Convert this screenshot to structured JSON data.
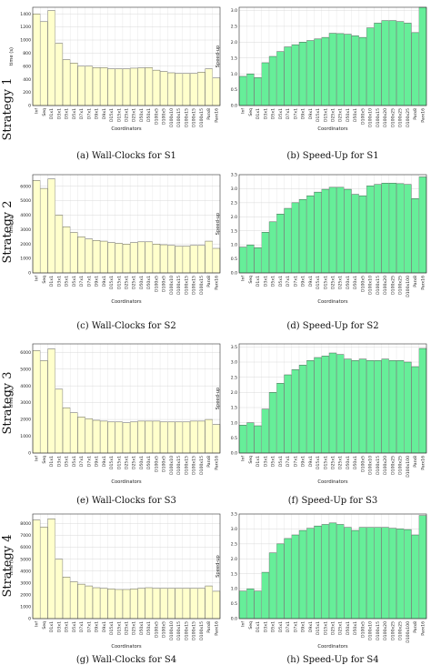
{
  "row_labels": [
    "Strategy 1",
    "Strategy 2",
    "Strategy 3",
    "Strategy 4"
  ],
  "colors": {
    "wall_fill": "#ffffcc",
    "speed_fill": "#66ee99",
    "edge": "#333333",
    "grid": "#d9d9d9"
  },
  "chart_data": [
    {
      "type": "bar",
      "caption": "(a) Wall-Clocks for S1",
      "xlabel": "Coordinators",
      "ylabel": "time (s)",
      "ylim": [
        0,
        1500
      ],
      "yticks": [
        0,
        200,
        400,
        600,
        800,
        1000,
        1200,
        1400
      ],
      "categories": [
        "Inf",
        "Seq",
        "D1x1",
        "D3x1",
        "D5x1",
        "D5x1",
        "D7x1",
        "D7x1",
        "D9x1",
        "D9x1",
        "D15x1",
        "D15x1",
        "D25x1",
        "D25x1",
        "D50x1",
        "D50x1",
        "D100x5",
        "D100x5",
        "D100x10",
        "D100x15",
        "D100x15",
        "D100x15",
        "D100x15",
        "Parx8",
        "Parx16"
      ],
      "values": [
        1400,
        1280,
        1450,
        950,
        700,
        650,
        600,
        600,
        580,
        580,
        560,
        560,
        560,
        570,
        575,
        580,
        540,
        520,
        500,
        490,
        490,
        490,
        510,
        560,
        420
      ]
    },
    {
      "type": "bar",
      "caption": "(b) Speed-Up for S1",
      "xlabel": "Coordinators",
      "ylabel": "Speed-up",
      "ylim": [
        0,
        3.1
      ],
      "yticks": [
        0.0,
        0.5,
        1.0,
        1.5,
        2.0,
        2.5,
        3.0
      ],
      "categories": [
        "Inf",
        "Seq",
        "D1x1",
        "D3x1",
        "D5x1",
        "D5x1",
        "D7x1",
        "D7x1",
        "D9x1",
        "D9x1",
        "D15x1",
        "D15x1",
        "D25x1",
        "D25x1",
        "D50x1",
        "D50x1",
        "D100x5",
        "D100x10",
        "D100x15",
        "D100x20",
        "D100x25",
        "D100x25",
        "D100x25",
        "Parx8",
        "Parx16"
      ],
      "values": [
        0.92,
        1.0,
        0.88,
        1.35,
        1.55,
        1.7,
        1.85,
        1.92,
        2.0,
        2.05,
        2.1,
        2.15,
        2.28,
        2.27,
        2.25,
        2.2,
        2.15,
        2.45,
        2.6,
        2.68,
        2.68,
        2.65,
        2.6,
        2.3,
        3.1
      ]
    },
    {
      "type": "bar",
      "caption": "(c) Wall-Clocks for S2",
      "xlabel": "Coordinators",
      "ylabel": "time (s)",
      "ylim": [
        0,
        6800
      ],
      "yticks": [
        0,
        1000,
        2000,
        3000,
        4000,
        5000,
        6000
      ],
      "categories": [
        "Inf",
        "Seq",
        "D1x1",
        "D3x1",
        "D5x1",
        "D5x1",
        "D7x1",
        "D7x1",
        "D9x1",
        "D9x1",
        "D15x1",
        "D15x1",
        "D25x1",
        "D25x1",
        "D50x1",
        "D50x1",
        "D100x5",
        "D100x5",
        "D100x10",
        "D100x15",
        "D100x15",
        "D100x15",
        "D100x15",
        "Parx8",
        "Parx16"
      ],
      "values": [
        6400,
        5850,
        6500,
        4000,
        3200,
        2800,
        2500,
        2350,
        2250,
        2200,
        2100,
        2050,
        2000,
        2100,
        2150,
        2150,
        2000,
        1950,
        1900,
        1850,
        1850,
        1900,
        1900,
        2200,
        1700
      ]
    },
    {
      "type": "bar",
      "caption": "(d) Speed-Up for S2",
      "xlabel": "Coordinators",
      "ylabel": "Speed-up",
      "ylim": [
        0,
        3.5
      ],
      "yticks": [
        0.0,
        0.5,
        1.0,
        1.5,
        2.0,
        2.5,
        3.0,
        3.5
      ],
      "categories": [
        "Inf",
        "Seq",
        "D1x1",
        "D3x1",
        "D5x1",
        "D5x1",
        "D7x1",
        "D7x1",
        "D9x1",
        "D9x1",
        "D15x1",
        "D15x1",
        "D25x1",
        "D25x1",
        "D50x1",
        "D50x1",
        "D100x5",
        "D100x10",
        "D100x15",
        "D100x20",
        "D100x25",
        "D100x25",
        "D100x100",
        "Parx8",
        "Parx16"
      ],
      "values": [
        0.92,
        1.0,
        0.9,
        1.45,
        1.82,
        2.1,
        2.3,
        2.5,
        2.62,
        2.75,
        2.88,
        2.98,
        3.05,
        3.05,
        2.98,
        2.8,
        2.75,
        3.1,
        3.15,
        3.2,
        3.2,
        3.18,
        3.15,
        2.65,
        3.42
      ]
    },
    {
      "type": "bar",
      "caption": "(e) Wall-Clocks for S3",
      "xlabel": "Coordinators",
      "ylabel": "time (s)",
      "ylim": [
        0,
        6500
      ],
      "yticks": [
        0,
        1000,
        2000,
        3000,
        4000,
        5000,
        6000
      ],
      "categories": [
        "Inf",
        "Seq",
        "D1x1",
        "D3x1",
        "D5x1",
        "D5x1",
        "D7x1",
        "D7x1",
        "D9x1",
        "D9x1",
        "D15x1",
        "D15x1",
        "D25x1",
        "D25x1",
        "D50x1",
        "D50x1",
        "D100x5",
        "D100x5",
        "D100x10",
        "D100x15",
        "D100x15",
        "D100x15",
        "D100x15",
        "Parx8",
        "Parx16"
      ],
      "values": [
        6100,
        5500,
        6200,
        3800,
        2700,
        2400,
        2150,
        2050,
        1950,
        1900,
        1850,
        1850,
        1800,
        1850,
        1900,
        1900,
        1900,
        1850,
        1850,
        1850,
        1850,
        1900,
        1900,
        2000,
        1700
      ]
    },
    {
      "type": "bar",
      "caption": "(f) Speed-Up for S3",
      "xlabel": "Coordinators",
      "ylabel": "Speed-up",
      "ylim": [
        0,
        3.6
      ],
      "yticks": [
        0.0,
        0.5,
        1.0,
        1.5,
        2.0,
        2.5,
        3.0,
        3.5
      ],
      "categories": [
        "Inf",
        "Seq",
        "D1x1",
        "D3x1",
        "D5x1",
        "D5x1",
        "D7x1",
        "D7x1",
        "D9x1",
        "D9x1",
        "D15x1",
        "D15x1",
        "D25x1",
        "D25x1",
        "D50x1",
        "D50x1",
        "D100x5",
        "D100x10",
        "D100x15",
        "D100x20",
        "D100x25",
        "D100x25",
        "D100x100",
        "Parx8",
        "Parx16"
      ],
      "values": [
        0.92,
        1.0,
        0.9,
        1.45,
        2.0,
        2.3,
        2.58,
        2.75,
        2.9,
        3.05,
        3.15,
        3.2,
        3.3,
        3.25,
        3.1,
        3.05,
        3.1,
        3.05,
        3.05,
        3.1,
        3.05,
        3.05,
        3.0,
        2.85,
        3.45
      ]
    },
    {
      "type": "bar",
      "caption": "(g) Wall-Clocks for S4",
      "xlabel": "Coordinators",
      "ylabel": "time (s)",
      "ylim": [
        0,
        8800
      ],
      "yticks": [
        0,
        1000,
        2000,
        3000,
        4000,
        5000,
        6000,
        7000,
        8000
      ],
      "categories": [
        "Inf",
        "Seq",
        "D1x1",
        "D3x1",
        "D5x1",
        "D5x1",
        "D7x1",
        "D7x1",
        "D9x1",
        "D9x1",
        "D15x1",
        "D15x1",
        "D25x1",
        "D25x1",
        "D50x1",
        "D50x1",
        "D100x5",
        "D100x5",
        "D100x10",
        "D100x15",
        "D100x15",
        "D100x15",
        "D100x15",
        "Parx8",
        "Parx16"
      ],
      "values": [
        8300,
        7700,
        8400,
        5000,
        3500,
        3100,
        2900,
        2750,
        2600,
        2550,
        2500,
        2450,
        2450,
        2500,
        2550,
        2600,
        2550,
        2550,
        2550,
        2550,
        2550,
        2550,
        2550,
        2750,
        2300
      ]
    },
    {
      "type": "bar",
      "caption": "(h) Speed-Up for S4",
      "xlabel": "Coordinators",
      "ylabel": "Speed-up",
      "ylim": [
        0,
        3.5
      ],
      "yticks": [
        0.0,
        0.5,
        1.0,
        1.5,
        2.0,
        2.5,
        3.0,
        3.5
      ],
      "categories": [
        "Inf",
        "Seq",
        "D1x1",
        "D3x1",
        "D5x1",
        "D5x1",
        "D7x1",
        "D7x1",
        "D9x1",
        "D9x1",
        "D15x1",
        "D15x1",
        "D25x1",
        "D25x1",
        "D50x1",
        "D50x1",
        "D100x5",
        "D100x10",
        "D100x15",
        "D100x20",
        "D100x25",
        "D100x25",
        "D100x100",
        "Parx8",
        "Parx16"
      ],
      "values": [
        0.92,
        1.0,
        0.92,
        1.55,
        2.2,
        2.5,
        2.68,
        2.8,
        2.95,
        3.02,
        3.1,
        3.15,
        3.2,
        3.15,
        3.05,
        2.95,
        3.05,
        3.05,
        3.05,
        3.05,
        3.02,
        3.0,
        2.98,
        2.8,
        3.45
      ]
    }
  ]
}
